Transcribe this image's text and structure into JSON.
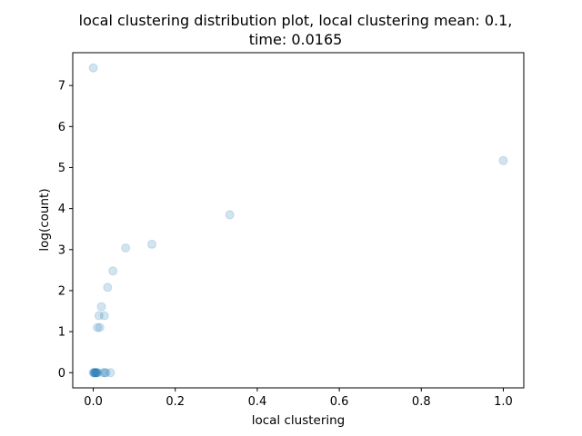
{
  "chart_data": {
    "type": "scatter",
    "title_line1": "local clustering distribution plot, local clustering mean: 0.1,",
    "title_line2": "time: 0.0165",
    "xlabel": "local clustering",
    "ylabel": "log(count)",
    "xlim": [
      -0.05,
      1.05
    ],
    "ylim": [
      -0.37,
      7.8
    ],
    "xticks": [
      0.0,
      0.2,
      0.4,
      0.6,
      0.8,
      1.0
    ],
    "xtick_labels": [
      "0.0",
      "0.2",
      "0.4",
      "0.6",
      "0.8",
      "1.0"
    ],
    "yticks": [
      0,
      1,
      2,
      3,
      4,
      5,
      6,
      7
    ],
    "ytick_labels": [
      "0",
      "1",
      "2",
      "3",
      "4",
      "5",
      "6",
      "7"
    ],
    "grid": false,
    "marker_color": "#1f77b4",
    "marker_alpha": 0.2,
    "points": [
      {
        "x": 0.0,
        "y": 7.43
      },
      {
        "x": 1.0,
        "y": 5.17
      },
      {
        "x": 0.333,
        "y": 3.85
      },
      {
        "x": 0.143,
        "y": 3.13
      },
      {
        "x": 0.079,
        "y": 3.04
      },
      {
        "x": 0.048,
        "y": 2.48
      },
      {
        "x": 0.035,
        "y": 2.08
      },
      {
        "x": 0.02,
        "y": 1.61
      },
      {
        "x": 0.014,
        "y": 1.39
      },
      {
        "x": 0.027,
        "y": 1.39
      },
      {
        "x": 0.01,
        "y": 1.1
      },
      {
        "x": 0.016,
        "y": 1.1
      },
      {
        "x": 0.0,
        "y": 0.0
      },
      {
        "x": 0.002,
        "y": 0.0
      },
      {
        "x": 0.003,
        "y": 0.0
      },
      {
        "x": 0.004,
        "y": 0.0
      },
      {
        "x": 0.005,
        "y": 0.0
      },
      {
        "x": 0.006,
        "y": 0.0
      },
      {
        "x": 0.008,
        "y": 0.0
      },
      {
        "x": 0.009,
        "y": 0.0
      },
      {
        "x": 0.011,
        "y": 0.0
      },
      {
        "x": 0.024,
        "y": 0.0
      },
      {
        "x": 0.028,
        "y": 0.0
      },
      {
        "x": 0.031,
        "y": 0.0
      },
      {
        "x": 0.042,
        "y": 0.0
      }
    ]
  }
}
